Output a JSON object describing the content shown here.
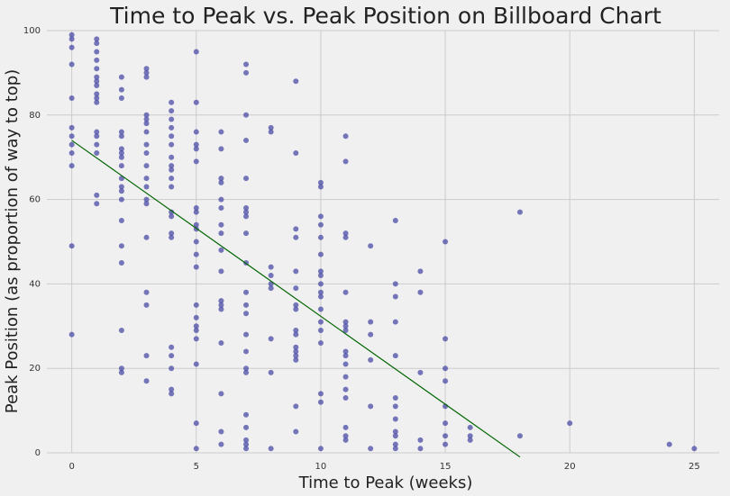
{
  "chart_data": {
    "type": "scatter",
    "title": "Time to Peak vs. Peak Position on Billboard Chart",
    "xlabel": "Time to Peak (weeks)",
    "ylabel": "Peak Position (as proportion of way to top)",
    "xlim": [
      -1,
      26
    ],
    "ylim": [
      0,
      100
    ],
    "xticks": [
      0,
      5,
      10,
      15,
      20,
      25
    ],
    "yticks": [
      0,
      20,
      40,
      60,
      80,
      100
    ],
    "grid": true,
    "colors": {
      "points": "#4b4ba5",
      "trend": "#006400",
      "grid": "#cbcbcb",
      "background": "#f0f0f0"
    },
    "trendline": {
      "x": [
        0,
        18
      ],
      "y": [
        74,
        -1
      ]
    },
    "points": [
      [
        0,
        99
      ],
      [
        0,
        98
      ],
      [
        0,
        96
      ],
      [
        0,
        92
      ],
      [
        0,
        84
      ],
      [
        0,
        77
      ],
      [
        0,
        75
      ],
      [
        0,
        73
      ],
      [
        0,
        71
      ],
      [
        0,
        68
      ],
      [
        0,
        49
      ],
      [
        0,
        28
      ],
      [
        1,
        98
      ],
      [
        1,
        97
      ],
      [
        1,
        95
      ],
      [
        1,
        93
      ],
      [
        1,
        91
      ],
      [
        1,
        89
      ],
      [
        1,
        88
      ],
      [
        1,
        87
      ],
      [
        1,
        85
      ],
      [
        1,
        84
      ],
      [
        1,
        83
      ],
      [
        1,
        76
      ],
      [
        1,
        75
      ],
      [
        1,
        73
      ],
      [
        1,
        71
      ],
      [
        1,
        61
      ],
      [
        1,
        59
      ],
      [
        2,
        89
      ],
      [
        2,
        86
      ],
      [
        2,
        84
      ],
      [
        2,
        76
      ],
      [
        2,
        75
      ],
      [
        2,
        72
      ],
      [
        2,
        71
      ],
      [
        2,
        70
      ],
      [
        2,
        68
      ],
      [
        2,
        65
      ],
      [
        2,
        63
      ],
      [
        2,
        62
      ],
      [
        2,
        60
      ],
      [
        2,
        55
      ],
      [
        2,
        49
      ],
      [
        2,
        45
      ],
      [
        2,
        29
      ],
      [
        2,
        20
      ],
      [
        2,
        19
      ],
      [
        3,
        91
      ],
      [
        3,
        90
      ],
      [
        3,
        89
      ],
      [
        3,
        80
      ],
      [
        3,
        79
      ],
      [
        3,
        78
      ],
      [
        3,
        76
      ],
      [
        3,
        73
      ],
      [
        3,
        71
      ],
      [
        3,
        68
      ],
      [
        3,
        65
      ],
      [
        3,
        63
      ],
      [
        3,
        60
      ],
      [
        3,
        59
      ],
      [
        3,
        51
      ],
      [
        3,
        38
      ],
      [
        3,
        35
      ],
      [
        3,
        23
      ],
      [
        3,
        17
      ],
      [
        4,
        83
      ],
      [
        4,
        81
      ],
      [
        4,
        79
      ],
      [
        4,
        77
      ],
      [
        4,
        75
      ],
      [
        4,
        73
      ],
      [
        4,
        70
      ],
      [
        4,
        68
      ],
      [
        4,
        67
      ],
      [
        4,
        65
      ],
      [
        4,
        63
      ],
      [
        4,
        57
      ],
      [
        4,
        56
      ],
      [
        4,
        52
      ],
      [
        4,
        51
      ],
      [
        4,
        25
      ],
      [
        4,
        23
      ],
      [
        4,
        20
      ],
      [
        4,
        15
      ],
      [
        4,
        14
      ],
      [
        5,
        95
      ],
      [
        5,
        83
      ],
      [
        5,
        76
      ],
      [
        5,
        73
      ],
      [
        5,
        72
      ],
      [
        5,
        69
      ],
      [
        5,
        58
      ],
      [
        5,
        57
      ],
      [
        5,
        54
      ],
      [
        5,
        53
      ],
      [
        5,
        50
      ],
      [
        5,
        47
      ],
      [
        5,
        44
      ],
      [
        5,
        35
      ],
      [
        5,
        32
      ],
      [
        5,
        30
      ],
      [
        5,
        29
      ],
      [
        5,
        27
      ],
      [
        5,
        21
      ],
      [
        5,
        7
      ],
      [
        5,
        1
      ],
      [
        6,
        76
      ],
      [
        6,
        72
      ],
      [
        6,
        65
      ],
      [
        6,
        64
      ],
      [
        6,
        60
      ],
      [
        6,
        58
      ],
      [
        6,
        54
      ],
      [
        6,
        52
      ],
      [
        6,
        48
      ],
      [
        6,
        43
      ],
      [
        6,
        36
      ],
      [
        6,
        35
      ],
      [
        6,
        34
      ],
      [
        6,
        26
      ],
      [
        6,
        14
      ],
      [
        6,
        5
      ],
      [
        6,
        2
      ],
      [
        7,
        92
      ],
      [
        7,
        90
      ],
      [
        7,
        80
      ],
      [
        7,
        74
      ],
      [
        7,
        65
      ],
      [
        7,
        58
      ],
      [
        7,
        57
      ],
      [
        7,
        56
      ],
      [
        7,
        52
      ],
      [
        7,
        45
      ],
      [
        7,
        38
      ],
      [
        7,
        35
      ],
      [
        7,
        33
      ],
      [
        7,
        28
      ],
      [
        7,
        24
      ],
      [
        7,
        20
      ],
      [
        7,
        19
      ],
      [
        7,
        9
      ],
      [
        7,
        6
      ],
      [
        7,
        3
      ],
      [
        7,
        2
      ],
      [
        7,
        1
      ],
      [
        8,
        77
      ],
      [
        8,
        76
      ],
      [
        8,
        44
      ],
      [
        8,
        42
      ],
      [
        8,
        40
      ],
      [
        8,
        39
      ],
      [
        8,
        27
      ],
      [
        8,
        19
      ],
      [
        8,
        1
      ],
      [
        9,
        88
      ],
      [
        9,
        71
      ],
      [
        9,
        53
      ],
      [
        9,
        51
      ],
      [
        9,
        43
      ],
      [
        9,
        39
      ],
      [
        9,
        35
      ],
      [
        9,
        34
      ],
      [
        9,
        29
      ],
      [
        9,
        28
      ],
      [
        9,
        25
      ],
      [
        9,
        24
      ],
      [
        9,
        23
      ],
      [
        9,
        22
      ],
      [
        9,
        11
      ],
      [
        9,
        5
      ],
      [
        10,
        64
      ],
      [
        10,
        63
      ],
      [
        10,
        56
      ],
      [
        10,
        54
      ],
      [
        10,
        51
      ],
      [
        10,
        47
      ],
      [
        10,
        43
      ],
      [
        10,
        42
      ],
      [
        10,
        40
      ],
      [
        10,
        38
      ],
      [
        10,
        37
      ],
      [
        10,
        34
      ],
      [
        10,
        31
      ],
      [
        10,
        29
      ],
      [
        10,
        26
      ],
      [
        10,
        14
      ],
      [
        10,
        12
      ],
      [
        10,
        1
      ],
      [
        11,
        75
      ],
      [
        11,
        69
      ],
      [
        11,
        52
      ],
      [
        11,
        51
      ],
      [
        11,
        38
      ],
      [
        11,
        31
      ],
      [
        11,
        30
      ],
      [
        11,
        29
      ],
      [
        11,
        24
      ],
      [
        11,
        23
      ],
      [
        11,
        21
      ],
      [
        11,
        18
      ],
      [
        11,
        15
      ],
      [
        11,
        13
      ],
      [
        11,
        6
      ],
      [
        11,
        4
      ],
      [
        11,
        3
      ],
      [
        12,
        49
      ],
      [
        12,
        31
      ],
      [
        12,
        28
      ],
      [
        12,
        22
      ],
      [
        12,
        11
      ],
      [
        12,
        1
      ],
      [
        13,
        55
      ],
      [
        13,
        40
      ],
      [
        13,
        37
      ],
      [
        13,
        31
      ],
      [
        13,
        23
      ],
      [
        13,
        13
      ],
      [
        13,
        11
      ],
      [
        13,
        8
      ],
      [
        13,
        5
      ],
      [
        13,
        4
      ],
      [
        13,
        2
      ],
      [
        13,
        1
      ],
      [
        14,
        43
      ],
      [
        14,
        38
      ],
      [
        14,
        19
      ],
      [
        14,
        3
      ],
      [
        14,
        1
      ],
      [
        15,
        50
      ],
      [
        15,
        27
      ],
      [
        15,
        20
      ],
      [
        15,
        17
      ],
      [
        15,
        11
      ],
      [
        15,
        7
      ],
      [
        15,
        4
      ],
      [
        15,
        2
      ],
      [
        16,
        6
      ],
      [
        16,
        4
      ],
      [
        16,
        3
      ],
      [
        18,
        57
      ],
      [
        18,
        4
      ],
      [
        20,
        7
      ],
      [
        24,
        2
      ],
      [
        25,
        1
      ]
    ]
  }
}
